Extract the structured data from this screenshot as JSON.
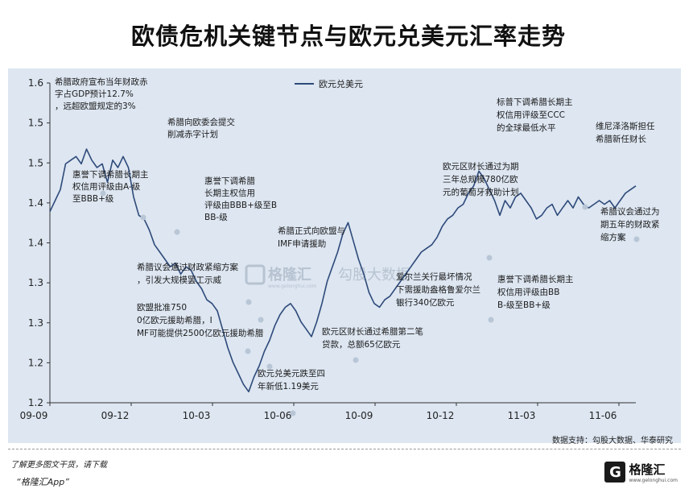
{
  "title": "欧债危机关键节点与欧元兑美元汇率走势",
  "source": "数据支持：勾股大数据、华泰研究",
  "footer": {
    "hint": "了解更多图文干货，请下载",
    "app": "“格隆汇App”",
    "logo_mark": "G",
    "logo_text": "格隆汇",
    "logo_sub": "www.gelonghui.com"
  },
  "watermark": {
    "brand": "格隆汇",
    "brand_sub": "www.gelonghui.com",
    "data_brand": "勾股大数据"
  },
  "colors": {
    "line": "#2e4a7a",
    "panel": "#dde6f1",
    "marker": "#b8c6d6"
  },
  "chart_data": {
    "type": "line",
    "title": "欧债危机关键节点与欧元兑美元汇率走势",
    "legend": "欧元兑美元",
    "xticks": [
      "09-09",
      "09-12",
      "10-03",
      "10-06",
      "10-09",
      "10-12",
      "11-03",
      "11-06"
    ],
    "yticks": [
      "1.6",
      "1.5",
      "1.5",
      "1.4",
      "1.4",
      "1.3",
      "1.3",
      "1.2",
      "1.2"
    ],
    "ylim": [
      1.175,
      1.61
    ],
    "grid": false,
    "legend_position": "top-left",
    "series": [
      {
        "name": "欧元兑美元",
        "x": [
          0,
          0.2,
          0.4,
          0.6,
          0.8,
          1,
          1.2,
          1.4,
          1.6,
          1.8,
          2,
          2.2,
          2.4,
          2.6,
          2.8,
          3,
          3.2,
          3.4,
          3.6,
          3.8,
          4,
          4.2,
          4.4,
          4.6,
          4.8,
          5,
          5.2,
          5.4,
          5.6,
          5.8,
          6,
          6.2,
          6.4,
          6.6,
          6.8,
          7,
          7.2,
          7.4,
          7.6,
          7.8,
          8,
          8.2,
          8.4,
          8.6,
          8.8,
          9,
          9.2,
          9.4,
          9.6,
          9.8,
          10,
          10.2,
          10.4,
          10.6,
          10.8,
          11,
          11.2,
          11.4,
          11.6,
          11.8,
          12,
          12.2,
          12.4,
          12.6,
          12.8,
          13,
          13.2,
          13.4,
          13.6,
          13.8,
          14,
          14.2,
          14.4,
          14.6,
          14.8,
          15,
          15.2,
          15.4,
          15.6,
          15.8,
          16,
          16.2,
          16.4,
          16.6,
          16.8,
          17,
          17.2,
          17.4,
          17.6,
          17.8,
          18,
          18.2,
          18.4,
          18.6,
          18.8,
          19,
          19.2,
          19.4,
          19.6,
          19.8,
          20,
          20.2,
          20.4,
          20.6,
          20.8,
          21,
          21.2,
          21.4,
          21.6,
          21.8,
          22,
          22.2,
          22.4
        ],
        "values": [
          1.435,
          1.45,
          1.465,
          1.5,
          1.505,
          1.51,
          1.5,
          1.52,
          1.505,
          1.495,
          1.5,
          1.475,
          1.505,
          1.495,
          1.51,
          1.495,
          1.455,
          1.43,
          1.425,
          1.41,
          1.39,
          1.38,
          1.37,
          1.36,
          1.365,
          1.35,
          1.36,
          1.355,
          1.34,
          1.33,
          1.315,
          1.31,
          1.3,
          1.275,
          1.25,
          1.23,
          1.215,
          1.2,
          1.19,
          1.21,
          1.225,
          1.245,
          1.26,
          1.28,
          1.295,
          1.305,
          1.31,
          1.3,
          1.285,
          1.275,
          1.265,
          1.285,
          1.31,
          1.34,
          1.36,
          1.38,
          1.405,
          1.42,
          1.395,
          1.37,
          1.35,
          1.325,
          1.31,
          1.305,
          1.315,
          1.32,
          1.33,
          1.34,
          1.35,
          1.36,
          1.37,
          1.38,
          1.385,
          1.39,
          1.4,
          1.415,
          1.425,
          1.43,
          1.44,
          1.445,
          1.46,
          1.47,
          1.49,
          1.48,
          1.465,
          1.45,
          1.43,
          1.45,
          1.44,
          1.455,
          1.46,
          1.45,
          1.44,
          1.425,
          1.43,
          1.44,
          1.445,
          1.43,
          1.44,
          1.45,
          1.44,
          1.455,
          1.445,
          1.44,
          1.445,
          1.45,
          1.445,
          1.45,
          1.44,
          1.45,
          1.46,
          1.465,
          1.47
        ]
      }
    ],
    "annotations": [
      {
        "text": "希腊政府宣布当年财政赤字占GDP预计12.7%，远超欧盟规定的3%"
      },
      {
        "text": "惠誉下调希腊长期主权信用评级由A-级至BBB+级"
      },
      {
        "text": "希腊向欧委会提交削减赤字计划"
      },
      {
        "text": "惠誉下调希腊长期主权信用评级由BBB+级至BBB-级"
      },
      {
        "text": "希腊正式向欧盟与IMF申请援助"
      },
      {
        "text": "希腊议会通过财政紧缩方案，引发大规模罢工示威"
      },
      {
        "text": "欧盟批准7500亿欧元援助希腊，IMF可能提供2500亿欧元援助希腊"
      },
      {
        "text": "欧元兑美元跌至四年新低1.19美元"
      },
      {
        "text": "欧元区财长通过希腊第二笔贷款，总额65亿欧元"
      },
      {
        "text": "爱尔兰关行最坏情况下需援助盎格鲁爱尔兰银行340亿欧元"
      },
      {
        "text": "欧元区财长通过为期三年总规模780亿欧元的葡萄牙救助计划"
      },
      {
        "text": "标普下调希腊长期主权信用评级至CCC的全球最低水平"
      },
      {
        "text": "维尼泽洛斯担任希腊新任财长"
      },
      {
        "text": "惠誉下调希腊长期主权信用评级由BBB-级至BB+级"
      },
      {
        "text": "希腊议会通过为期五年的财政紧缩方案"
      }
    ]
  }
}
